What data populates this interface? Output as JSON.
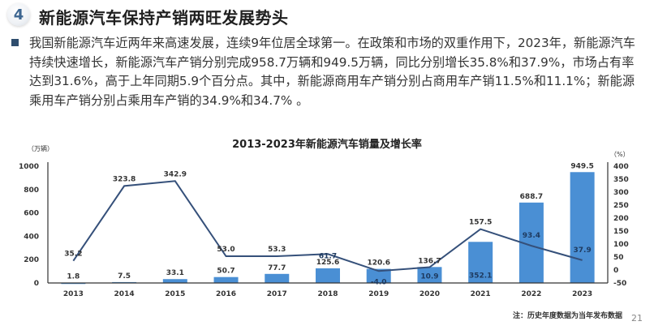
{
  "header": {
    "section_number": "4",
    "title": "新能源汽车保持产销两旺发展势头"
  },
  "bullet": {
    "text": "我国新能源汽车近两年来高速发展，连续9年位居全球第一。在政策和市场的双重作用下，2023年，新能源汽车持续快速增长，新能源汽车产销分别完成958.7万辆和949.5万辆，同比分别增长35.8%和37.9%，市场占有率达到31.6%，高于上年同期5.9个百分点。其中，新能源商用车产销分别占商用车产销11.5%和11.1%；新能源乘用车产销分别占乘用车产销的34.9%和34.7% 。"
  },
  "chart_data": {
    "type": "bar+line",
    "title": "2013-2023年新能源汽车销量及增长率",
    "categories": [
      "2013",
      "2014",
      "2015",
      "2016",
      "2017",
      "2018",
      "2019",
      "2020",
      "2021",
      "2022",
      "2023"
    ],
    "series": [
      {
        "name": "销量",
        "type": "bar",
        "axis": "left",
        "unit": "万辆",
        "color": "#4a8fd4",
        "values": [
          1.8,
          7.5,
          33.1,
          50.7,
          77.7,
          125.6,
          120.6,
          136.7,
          352.1,
          688.7,
          949.5
        ]
      },
      {
        "name": "增长率",
        "type": "line",
        "axis": "right",
        "unit": "%",
        "color": "#35507a",
        "values": [
          35.2,
          323.8,
          342.9,
          53.0,
          53.3,
          61.7,
          -4.0,
          10.9,
          157.5,
          93.4,
          37.9
        ]
      }
    ],
    "ylabel_left": "（万辆）",
    "ylabel_right": "（%）",
    "ylim_left": [
      0,
      1000
    ],
    "yticks_left": [
      0,
      200,
      400,
      600,
      800,
      1000
    ],
    "ylim_right": [
      -50,
      400
    ],
    "yticks_right": [
      -50,
      0,
      50,
      100,
      150,
      200,
      250,
      300,
      350,
      400
    ],
    "grid": false,
    "legend": "none"
  },
  "footer": {
    "note": "注：历史年度数据为当年发布数据",
    "page_number": "21"
  }
}
